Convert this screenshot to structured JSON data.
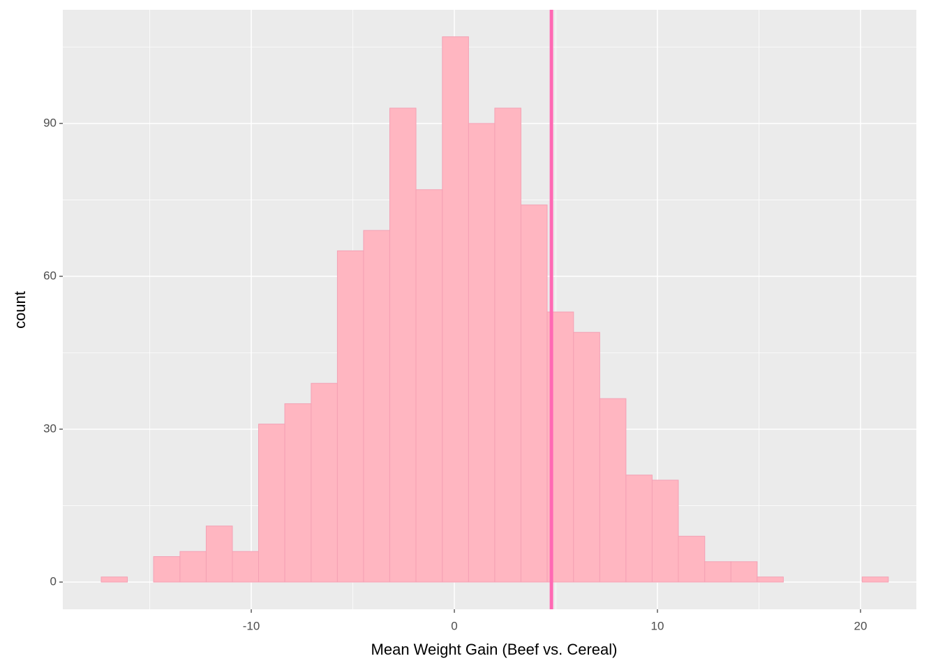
{
  "chart_data": {
    "type": "histogram",
    "x_label": "Mean Weight Gain (Beef vs. Cereal)",
    "y_label": "count",
    "bins": [
      -17.39,
      -16.1,
      -14.81,
      -13.51,
      -12.22,
      -10.93,
      -9.64,
      -8.35,
      -7.05,
      -5.76,
      -4.47,
      -3.18,
      -1.89,
      -0.59,
      0.7,
      1.99,
      3.28,
      4.57,
      5.87,
      7.16,
      8.45,
      9.74,
      11.03,
      12.33,
      13.62,
      14.91,
      16.2,
      17.49,
      18.79,
      20.08,
      21.37
    ],
    "values": [
      1,
      0,
      5,
      6,
      11,
      6,
      31,
      35,
      39,
      65,
      69,
      93,
      77,
      107,
      90,
      93,
      74,
      53,
      49,
      36,
      21,
      20,
      9,
      4,
      4,
      1,
      0,
      0,
      0,
      1
    ],
    "color": "#ffb6c1",
    "edge_color": "#f4a0b4",
    "vline": 4.78,
    "vline_color": "#ff69b4",
    "xlim": [
      -19.28,
      22.75
    ],
    "ylim": [
      -5.34,
      112.3
    ],
    "xticks": [
      -10,
      0,
      10,
      20
    ],
    "yticks": [
      0,
      30,
      60,
      90
    ],
    "grid": true
  }
}
